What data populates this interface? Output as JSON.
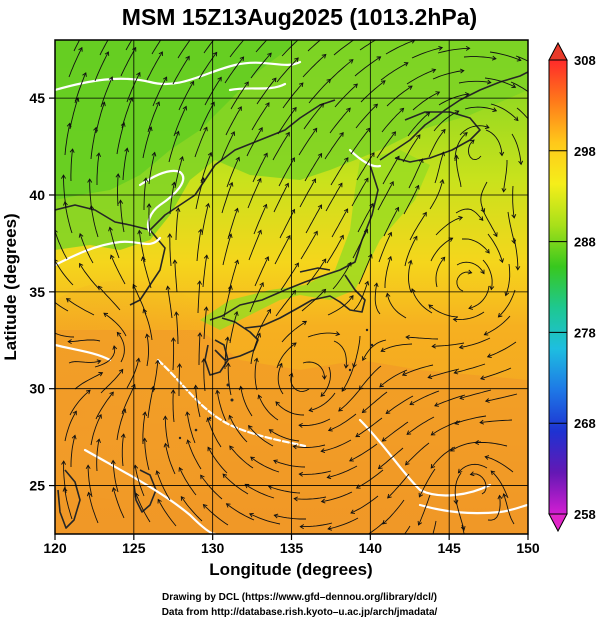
{
  "title": "MSM 15Z13Aug2025 (1013.2hPa)",
  "x_axis": {
    "label": "Longitude (degrees)",
    "ticks": [
      "120",
      "125",
      "130",
      "135",
      "140",
      "145",
      "150"
    ],
    "range": [
      120,
      150
    ]
  },
  "y_axis": {
    "label": "Latitude  (degrees)",
    "ticks": [
      "25",
      "30",
      "35",
      "40",
      "45"
    ],
    "range": [
      22.5,
      48
    ]
  },
  "colorbar": {
    "ticks": [
      "308",
      "298",
      "288",
      "278",
      "268",
      "258"
    ],
    "range": [
      258,
      308
    ],
    "colors": [
      "#ff2a2a",
      "#ff7a1a",
      "#ffc81a",
      "#f5ee1a",
      "#a8e01a",
      "#38c81e",
      "#1ec890",
      "#1ebee0",
      "#1e78e6",
      "#1e32d2",
      "#6418b4",
      "#d21ed2"
    ]
  },
  "map": {
    "land_color": "#2e2e2e",
    "contour_color": "#ffffff",
    "grid_color": "#000000"
  },
  "credits": {
    "line1": "Drawing by DCL (https://www.gfd–dennou.org/library/dcl/)",
    "line2": "Data from http://database.rish.kyoto–u.ac.jp/arch/jmadata/"
  }
}
